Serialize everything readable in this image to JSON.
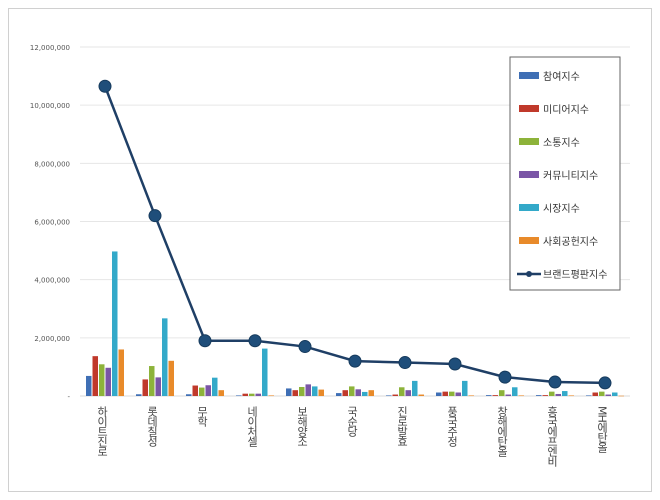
{
  "chart_data": {
    "type": "bar",
    "categories": [
      "하이트진로",
      "롯데칠성",
      "무학",
      "네이처셀",
      "보해양조",
      "국순당",
      "진로발효",
      "풍국주정",
      "창해에탄올",
      "흥국에프엔비",
      "MH에탄올"
    ],
    "ylim": [
      0,
      12000000
    ],
    "yticks": [
      0,
      2000000,
      4000000,
      6000000,
      8000000,
      10000000,
      12000000
    ],
    "ytick_labels": [
      "-",
      "2,000,000",
      "4,000,000",
      "6,000,000",
      "8,000,000",
      "10,000,000",
      "12,000,000"
    ],
    "grid": true,
    "legend_position": "right",
    "series": [
      {
        "name": "참여지수",
        "kind": "bar",
        "color": "#3f6fb5",
        "values": [
          690000,
          60000,
          60000,
          20000,
          260000,
          100000,
          20000,
          120000,
          30000,
          30000,
          20000
        ]
      },
      {
        "name": "미디어지수",
        "kind": "bar",
        "color": "#c0392b",
        "values": [
          1370000,
          570000,
          360000,
          80000,
          200000,
          200000,
          50000,
          150000,
          30000,
          30000,
          120000
        ]
      },
      {
        "name": "소통지수",
        "kind": "bar",
        "color": "#8db33a",
        "values": [
          1090000,
          1030000,
          290000,
          80000,
          310000,
          330000,
          300000,
          150000,
          200000,
          150000,
          150000
        ]
      },
      {
        "name": "커뮤니티지수",
        "kind": "bar",
        "color": "#7a55a6",
        "values": [
          970000,
          640000,
          370000,
          80000,
          400000,
          230000,
          200000,
          120000,
          50000,
          70000,
          50000
        ]
      },
      {
        "name": "시장지수",
        "kind": "bar",
        "color": "#33a9c9",
        "values": [
          4970000,
          2670000,
          630000,
          1630000,
          330000,
          140000,
          520000,
          520000,
          300000,
          170000,
          120000
        ]
      },
      {
        "name": "사회공헌지수",
        "kind": "bar",
        "color": "#e88a2a",
        "values": [
          1600000,
          1210000,
          200000,
          20000,
          220000,
          200000,
          50000,
          20000,
          20000,
          20000,
          10000
        ]
      },
      {
        "name": "브랜드평판지수",
        "kind": "line",
        "color": "#1f3f66",
        "values": [
          10650000,
          6200000,
          1900000,
          1900000,
          1700000,
          1200000,
          1150000,
          1100000,
          650000,
          480000,
          450000
        ]
      }
    ]
  }
}
